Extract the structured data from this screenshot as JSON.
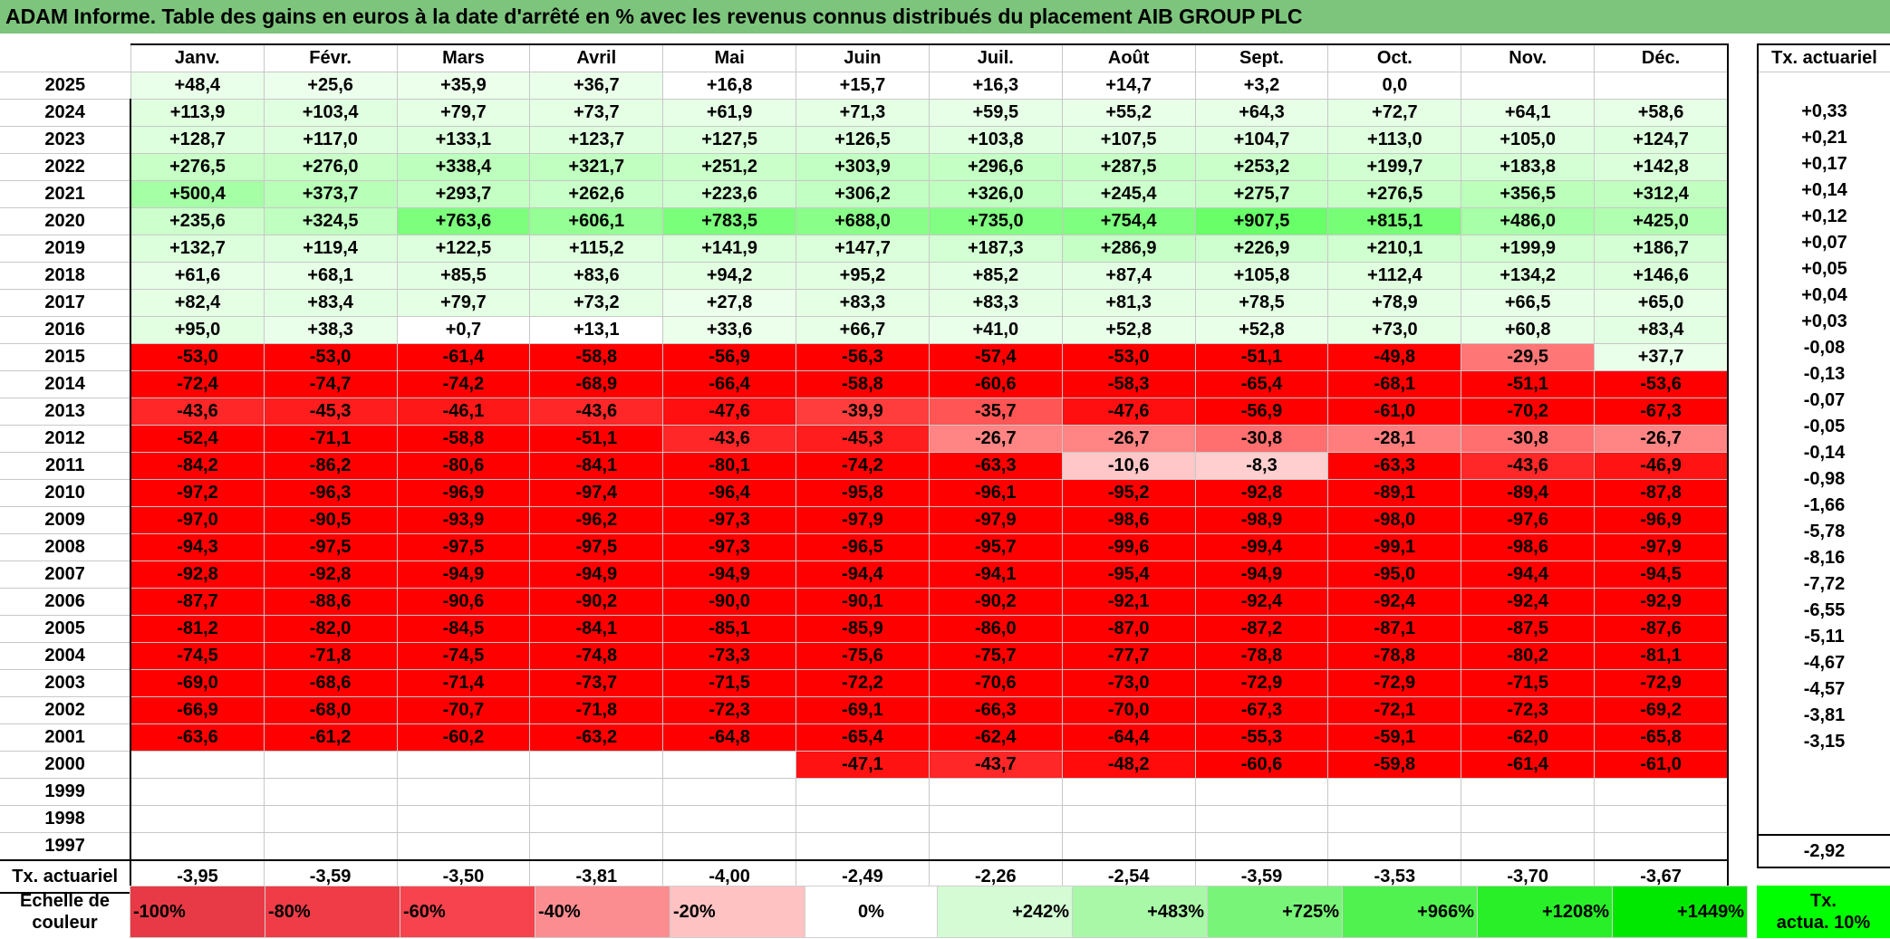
{
  "title": "ADAM Informe. Table des gains en euros à la date d'arrêté en % avec les revenus connus distribués du placement AIB GROUP PLC",
  "months": [
    "Janv.",
    "Févr.",
    "Mars",
    "Avril",
    "Mai",
    "Juin",
    "Juil.",
    "Août",
    "Sept.",
    "Oct.",
    "Nov.",
    "Déc."
  ],
  "rate_header": "Tx. actuariel",
  "footer_label": "Tx. actuariel",
  "rows": [
    {
      "year": "2025",
      "values": [
        "+48,4",
        "+25,6",
        "+35,9",
        "+36,7",
        "+16,8",
        "+15,7",
        "+16,3",
        "+14,7",
        "+3,2",
        "0,0",
        "",
        ""
      ],
      "rate": ""
    },
    {
      "year": "2024",
      "values": [
        "+113,9",
        "+103,4",
        "+79,7",
        "+73,7",
        "+61,9",
        "+71,3",
        "+59,5",
        "+55,2",
        "+64,3",
        "+72,7",
        "+64,1",
        "+58,6"
      ],
      "rate": "+0,33"
    },
    {
      "year": "2023",
      "values": [
        "+128,7",
        "+117,0",
        "+133,1",
        "+123,7",
        "+127,5",
        "+126,5",
        "+103,8",
        "+107,5",
        "+104,7",
        "+113,0",
        "+105,0",
        "+124,7"
      ],
      "rate": "+0,21"
    },
    {
      "year": "2022",
      "values": [
        "+276,5",
        "+276,0",
        "+338,4",
        "+321,7",
        "+251,2",
        "+303,9",
        "+296,6",
        "+287,5",
        "+253,2",
        "+199,7",
        "+183,8",
        "+142,8"
      ],
      "rate": "+0,17"
    },
    {
      "year": "2021",
      "values": [
        "+500,4",
        "+373,7",
        "+293,7",
        "+262,6",
        "+223,6",
        "+306,2",
        "+326,0",
        "+245,4",
        "+275,7",
        "+276,5",
        "+356,5",
        "+312,4"
      ],
      "rate": "+0,14"
    },
    {
      "year": "2020",
      "values": [
        "+235,6",
        "+324,5",
        "+763,6",
        "+606,1",
        "+783,5",
        "+688,0",
        "+735,0",
        "+754,4",
        "+907,5",
        "+815,1",
        "+486,0",
        "+425,0"
      ],
      "rate": "+0,12"
    },
    {
      "year": "2019",
      "values": [
        "+132,7",
        "+119,4",
        "+122,5",
        "+115,2",
        "+141,9",
        "+147,7",
        "+187,3",
        "+286,9",
        "+226,9",
        "+210,1",
        "+199,9",
        "+186,7"
      ],
      "rate": "+0,07"
    },
    {
      "year": "2018",
      "values": [
        "+61,6",
        "+68,1",
        "+85,5",
        "+83,6",
        "+94,2",
        "+95,2",
        "+85,2",
        "+87,4",
        "+105,8",
        "+112,4",
        "+134,2",
        "+146,6"
      ],
      "rate": "+0,05"
    },
    {
      "year": "2017",
      "values": [
        "+82,4",
        "+83,4",
        "+79,7",
        "+73,2",
        "+27,8",
        "+83,3",
        "+83,3",
        "+81,3",
        "+78,5",
        "+78,9",
        "+66,5",
        "+65,0"
      ],
      "rate": "+0,04"
    },
    {
      "year": "2016",
      "values": [
        "+95,0",
        "+38,3",
        "+0,7",
        "+13,1",
        "+33,6",
        "+66,7",
        "+41,0",
        "+52,8",
        "+52,8",
        "+73,0",
        "+60,8",
        "+83,4"
      ],
      "rate": "+0,03"
    },
    {
      "year": "2015",
      "values": [
        "-53,0",
        "-53,0",
        "-61,4",
        "-58,8",
        "-56,9",
        "-56,3",
        "-57,4",
        "-53,0",
        "-51,1",
        "-49,8",
        "-29,5",
        "+37,7"
      ],
      "rate": "-0,08"
    },
    {
      "year": "2014",
      "values": [
        "-72,4",
        "-74,7",
        "-74,2",
        "-68,9",
        "-66,4",
        "-58,8",
        "-60,6",
        "-58,3",
        "-65,4",
        "-68,1",
        "-51,1",
        "-53,6"
      ],
      "rate": "-0,13"
    },
    {
      "year": "2013",
      "values": [
        "-43,6",
        "-45,3",
        "-46,1",
        "-43,6",
        "-47,6",
        "-39,9",
        "-35,7",
        "-47,6",
        "-56,9",
        "-61,0",
        "-70,2",
        "-67,3"
      ],
      "rate": "-0,07"
    },
    {
      "year": "2012",
      "values": [
        "-52,4",
        "-71,1",
        "-58,8",
        "-51,1",
        "-43,6",
        "-45,3",
        "-26,7",
        "-26,7",
        "-30,8",
        "-28,1",
        "-30,8",
        "-26,7"
      ],
      "rate": "-0,05"
    },
    {
      "year": "2011",
      "values": [
        "-84,2",
        "-86,2",
        "-80,6",
        "-84,1",
        "-80,1",
        "-74,2",
        "-63,3",
        "-10,6",
        "-8,3",
        "-63,3",
        "-43,6",
        "-46,9"
      ],
      "rate": "-0,14"
    },
    {
      "year": "2010",
      "values": [
        "-97,2",
        "-96,3",
        "-96,9",
        "-97,4",
        "-96,4",
        "-95,8",
        "-96,1",
        "-95,2",
        "-92,8",
        "-89,1",
        "-89,4",
        "-87,8"
      ],
      "rate": "-0,98"
    },
    {
      "year": "2009",
      "values": [
        "-97,0",
        "-90,5",
        "-93,9",
        "-96,2",
        "-97,3",
        "-97,9",
        "-97,9",
        "-98,6",
        "-98,9",
        "-98,0",
        "-97,6",
        "-96,9"
      ],
      "rate": "-1,66"
    },
    {
      "year": "2008",
      "values": [
        "-94,3",
        "-97,5",
        "-97,5",
        "-97,5",
        "-97,3",
        "-96,5",
        "-95,7",
        "-99,6",
        "-99,4",
        "-99,1",
        "-98,6",
        "-97,9"
      ],
      "rate": "-5,78"
    },
    {
      "year": "2007",
      "values": [
        "-92,8",
        "-92,8",
        "-94,9",
        "-94,9",
        "-94,9",
        "-94,4",
        "-94,1",
        "-95,4",
        "-94,9",
        "-95,0",
        "-94,4",
        "-94,5"
      ],
      "rate": "-8,16"
    },
    {
      "year": "2006",
      "values": [
        "-87,7",
        "-88,6",
        "-90,6",
        "-90,2",
        "-90,0",
        "-90,1",
        "-90,2",
        "-92,1",
        "-92,4",
        "-92,4",
        "-92,4",
        "-92,9"
      ],
      "rate": "-7,72"
    },
    {
      "year": "2005",
      "values": [
        "-81,2",
        "-82,0",
        "-84,5",
        "-84,1",
        "-85,1",
        "-85,9",
        "-86,0",
        "-87,0",
        "-87,2",
        "-87,1",
        "-87,5",
        "-87,6"
      ],
      "rate": "-6,55"
    },
    {
      "year": "2004",
      "values": [
        "-74,5",
        "-71,8",
        "-74,5",
        "-74,8",
        "-73,3",
        "-75,6",
        "-75,7",
        "-77,7",
        "-78,8",
        "-78,8",
        "-80,2",
        "-81,1"
      ],
      "rate": "-5,11"
    },
    {
      "year": "2003",
      "values": [
        "-69,0",
        "-68,6",
        "-71,4",
        "-73,7",
        "-71,5",
        "-72,2",
        "-70,6",
        "-73,0",
        "-72,9",
        "-72,9",
        "-71,5",
        "-72,9"
      ],
      "rate": "-4,67"
    },
    {
      "year": "2002",
      "values": [
        "-66,9",
        "-68,0",
        "-70,7",
        "-71,8",
        "-72,3",
        "-69,1",
        "-66,3",
        "-70,0",
        "-67,3",
        "-72,1",
        "-72,3",
        "-69,2"
      ],
      "rate": "-4,57"
    },
    {
      "year": "2001",
      "values": [
        "-63,6",
        "-61,2",
        "-60,2",
        "-63,2",
        "-64,8",
        "-65,4",
        "-62,4",
        "-64,4",
        "-55,3",
        "-59,1",
        "-62,0",
        "-65,8"
      ],
      "rate": "-3,81"
    },
    {
      "year": "2000",
      "values": [
        "",
        "",
        "",
        "",
        "",
        "-47,1",
        "-43,7",
        "-48,2",
        "-60,6",
        "-59,8",
        "-61,4",
        "-61,0"
      ],
      "rate": "-3,15"
    },
    {
      "year": "1999",
      "values": [
        "",
        "",
        "",
        "",
        "",
        "",
        "",
        "",
        "",
        "",
        "",
        ""
      ],
      "rate": ""
    },
    {
      "year": "1998",
      "values": [
        "",
        "",
        "",
        "",
        "",
        "",
        "",
        "",
        "",
        "",
        "",
        ""
      ],
      "rate": ""
    },
    {
      "year": "1997",
      "values": [
        "",
        "",
        "",
        "",
        "",
        "",
        "",
        "",
        "",
        "",
        "",
        ""
      ],
      "rate": ""
    }
  ],
  "footer_values": [
    "-3,95",
    "-3,59",
    "-3,50",
    "-3,81",
    "-4,00",
    "-2,49",
    "-2,26",
    "-2,54",
    "-3,59",
    "-3,53",
    "-3,70",
    "-3,67"
  ],
  "footer_rate": "-2,92",
  "scale_label_line1": "Echelle de",
  "scale_label_line2": "couleur",
  "scale": [
    "-100%",
    "-80%",
    "-60%",
    "-40%",
    "-20%",
    "0%",
    "+242%",
    "+483%",
    "+725%",
    "+966%",
    "+1208%",
    "+1449%"
  ],
  "scale_rate_line1": "Tx.",
  "scale_rate_line2": "actua. 10%",
  "colors": {
    "title_bg": "#7dc47d",
    "neg_strong": "#ff0000",
    "pos_strong": "#00ff00",
    "neutral": "#ffffff",
    "scale_colors": [
      "#e83a46",
      "#ef3c47",
      "#f7434d",
      "#fb8d90",
      "#fec2c2",
      "#ffffff",
      "#d4fbd4",
      "#a8f8a8",
      "#78f578",
      "#50f250",
      "#28ef28",
      "#00e800"
    ]
  },
  "chart_data": {
    "type": "heatmap",
    "title": "ADAM Informe. Table des gains en euros à la date d'arrêté en % avec les revenus connus distribués du placement AIB GROUP PLC",
    "x": [
      "Janv.",
      "Févr.",
      "Mars",
      "Avril",
      "Mai",
      "Juin",
      "Juil.",
      "Août",
      "Sept.",
      "Oct.",
      "Nov.",
      "Déc."
    ],
    "y": [
      "2025",
      "2024",
      "2023",
      "2022",
      "2021",
      "2020",
      "2019",
      "2018",
      "2017",
      "2016",
      "2015",
      "2014",
      "2013",
      "2012",
      "2011",
      "2010",
      "2009",
      "2008",
      "2007",
      "2006",
      "2005",
      "2004",
      "2003",
      "2002",
      "2001",
      "2000",
      "1999",
      "1998",
      "1997"
    ],
    "color_scale": {
      "min": -100,
      "max": 1449,
      "neutral": 0
    }
  }
}
